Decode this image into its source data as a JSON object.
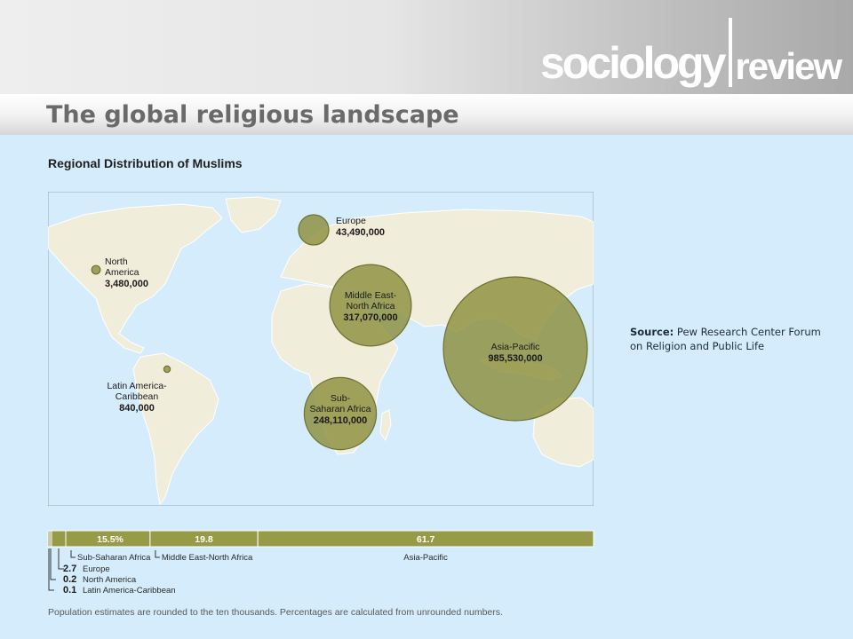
{
  "header": {
    "brand_left": "sociology",
    "brand_right": "review",
    "title": "The global religious landscape"
  },
  "source": {
    "label": "Source:",
    "text": "Pew Research Center Forum on Religion and Public Life"
  },
  "footnote": "Population estimates are rounded to the ten thousands. Percentages are calculated from unrounded numbers.",
  "colors": {
    "ocean": "#d4ecfb",
    "land": "#f1eddb",
    "bubble": "#8c8f3c",
    "bar": "#979a46"
  },
  "chart_data": [
    {
      "type": "bubble-map",
      "title": "Regional Distribution of Muslims",
      "regions": [
        {
          "name": "North America",
          "value": 3480000,
          "value_label": "3,480,000"
        },
        {
          "name": "Latin America-Caribbean",
          "value": 840000,
          "value_label": "840,000"
        },
        {
          "name": "Europe",
          "value": 43490000,
          "value_label": "43,490,000"
        },
        {
          "name": "Middle East-North Africa",
          "value": 317070000,
          "value_label": "317,070,000"
        },
        {
          "name": "Sub-Saharan Africa",
          "value": 248110000,
          "value_label": "248,110,000"
        },
        {
          "name": "Asia-Pacific",
          "value": 985530000,
          "value_label": "985,530,000"
        }
      ]
    },
    {
      "type": "stacked-bar",
      "unit": "%",
      "segments": [
        {
          "name": "Latin America-Caribbean",
          "value": 0.1,
          "label": "0.1"
        },
        {
          "name": "North America",
          "value": 0.2,
          "label": "0.2"
        },
        {
          "name": "Europe",
          "value": 2.7,
          "label": "2.7"
        },
        {
          "name": "Sub-Saharan Africa",
          "value": 15.5,
          "label": "15.5%"
        },
        {
          "name": "Middle East-North Africa",
          "value": 19.8,
          "label": "19.8"
        },
        {
          "name": "Asia-Pacific",
          "value": 61.7,
          "label": "61.7"
        }
      ]
    }
  ]
}
